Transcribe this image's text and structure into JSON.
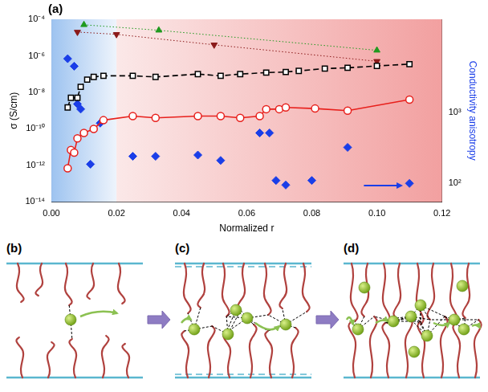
{
  "panel_label": "(a)",
  "chart_data": {
    "type": "scatter",
    "x_label": "Normalized r",
    "y_label": "σ (S/cm)",
    "y2_label": "Conductivity anisotropy",
    "xlim": [
      0,
      0.12
    ],
    "xticks": [
      {
        "value": 0,
        "label": "0.00"
      },
      0.02,
      0.04,
      0.06,
      0.08,
      {
        "value": 0.1,
        "label": "0.10"
      },
      0.12
    ],
    "ylim": [
      1e-14,
      0.0001
    ],
    "yticks": [
      {
        "value": 1e-14,
        "label": "10⁻¹⁴"
      },
      {
        "value": 1e-12,
        "label": "10⁻¹²"
      },
      {
        "value": 1e-10,
        "label": "10⁻¹⁰"
      },
      {
        "value": 1e-08,
        "label": "10⁻⁸"
      },
      {
        "value": 1e-06,
        "label": "10⁻⁶"
      },
      {
        "value": 0.0001,
        "label": "10⁻⁴"
      }
    ],
    "y2lim": [
      55,
      20000
    ],
    "y2ticks": [
      {
        "value": 100,
        "label": "10²"
      },
      {
        "value": 1000,
        "label": "10³"
      }
    ],
    "log": "y",
    "grid": false,
    "regions": [
      {
        "x": [
          0,
          0.02
        ],
        "color": "#9dc3f0"
      },
      {
        "x": [
          0.02,
          0.12
        ],
        "color": "#f2a0a0"
      }
    ],
    "series": [
      {
        "color": "#000000",
        "marker": "square-open",
        "line_style": "dashed",
        "x": [
          0.005,
          0.006,
          0.008,
          0.009,
          0.011,
          0.013,
          0.016,
          0.025,
          0.032,
          0.045,
          0.052,
          0.058,
          0.066,
          0.072,
          0.076,
          0.084,
          0.091,
          0.1,
          0.11
        ],
        "values": [
          1.5e-09,
          5e-09,
          5e-09,
          2e-08,
          5e-08,
          7e-08,
          8e-08,
          8e-08,
          7e-08,
          1e-07,
          8e-08,
          1e-07,
          1.2e-07,
          1.3e-07,
          1.5e-07,
          2e-07,
          2.2e-07,
          2.8e-07,
          3.5e-07
        ]
      },
      {
        "color": "#e8201c",
        "marker": "circle-open",
        "line_style": "solid",
        "x": [
          0.005,
          0.006,
          0.007,
          0.008,
          0.01,
          0.013,
          0.016,
          0.025,
          0.032,
          0.045,
          0.052,
          0.058,
          0.064,
          0.066,
          0.07,
          0.072,
          0.081,
          0.091,
          0.11
        ],
        "values": [
          7e-13,
          7e-12,
          5e-12,
          3e-11,
          6e-11,
          1e-10,
          3e-10,
          5e-10,
          4e-10,
          5e-10,
          5e-10,
          4e-10,
          5e-10,
          1.2e-09,
          1.2e-09,
          1.5e-09,
          1.3e-09,
          1e-09,
          4e-09
        ]
      },
      {
        "color": "#1f9a1f",
        "marker": "triangle",
        "line_style": "dotted",
        "x": [
          0.01,
          0.033,
          0.1
        ],
        "values": [
          5e-05,
          2.5e-05,
          2e-06
        ]
      },
      {
        "color": "#8b1a1a",
        "marker": "triangle-down",
        "line_style": "dotted",
        "x": [
          0.008,
          0.02,
          0.05,
          0.1
        ],
        "values": [
          2e-05,
          1.5e-05,
          4e-06,
          5e-07
        ]
      },
      {
        "color": "#1a3ee8",
        "marker": "diamond",
        "line_style": "none",
        "axis": "y2",
        "x": [
          0.005,
          0.007,
          0.008,
          0.009,
          0.015,
          0.012,
          0.025,
          0.032,
          0.045,
          0.052,
          0.064,
          0.067,
          0.069,
          0.072,
          0.08,
          0.091,
          0.11
        ],
        "values": [
          5600,
          4400,
          1300,
          1100,
          700,
          186,
          240,
          240,
          250,
          210,
          510,
          510,
          110,
          95,
          110,
          320,
          100
        ]
      }
    ]
  },
  "diagrams": [
    {
      "label": "(b)"
    },
    {
      "label": "(c)"
    },
    {
      "label": "(d)"
    }
  ]
}
